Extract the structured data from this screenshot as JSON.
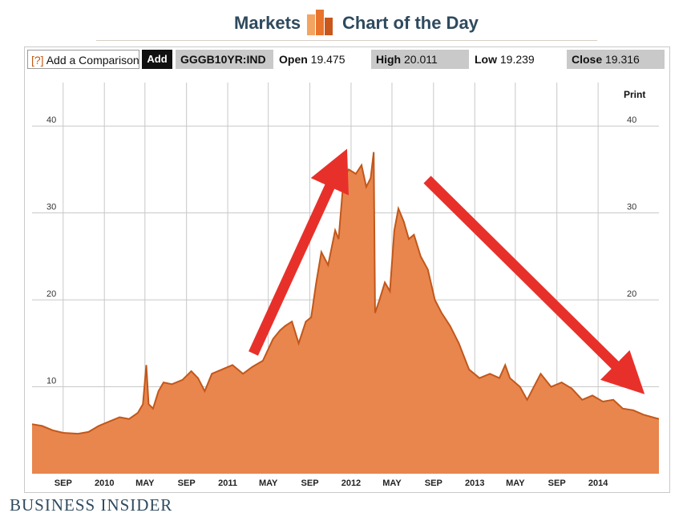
{
  "header": {
    "left_label": "Markets",
    "right_label": "Chart of the Day"
  },
  "toolbar": {
    "compare_prefix": "[?]",
    "compare_label": "Add a Comparison",
    "add_label": "Add",
    "ticker": "GGGB10YR:IND",
    "open_label": "Open",
    "open_value": "19.475",
    "high_label": "High",
    "high_value": "20.011",
    "low_label": "Low",
    "low_value": "19.239",
    "close_label": "Close",
    "close_value": "19.316",
    "print_label": "Print"
  },
  "brand": "BUSINESS INSIDER",
  "colors": {
    "area_fill": "#e8864e",
    "line": "#c2571a",
    "arrow": "#e8302a",
    "grid": "#c8c8c8"
  },
  "chart_data": {
    "type": "area",
    "title": "",
    "xlabel": "",
    "ylabel": "",
    "ylim": [
      0,
      45
    ],
    "y_ticks": [
      10,
      20,
      30,
      40
    ],
    "grid": true,
    "x_range": [
      "2009-06-01",
      "2014-06-30"
    ],
    "x_ticks": [
      {
        "label": "SEP",
        "date": "2009-09-01"
      },
      {
        "label": "2010",
        "date": "2010-01-01"
      },
      {
        "label": "MAY",
        "date": "2010-05-01"
      },
      {
        "label": "SEP",
        "date": "2010-09-01"
      },
      {
        "label": "2011",
        "date": "2011-01-01"
      },
      {
        "label": "MAY",
        "date": "2011-05-01"
      },
      {
        "label": "SEP",
        "date": "2011-09-01"
      },
      {
        "label": "2012",
        "date": "2012-01-01"
      },
      {
        "label": "MAY",
        "date": "2012-05-01"
      },
      {
        "label": "SEP",
        "date": "2012-09-01"
      },
      {
        "label": "2013",
        "date": "2013-01-01"
      },
      {
        "label": "MAY",
        "date": "2013-05-01"
      },
      {
        "label": "SEP",
        "date": "2013-09-01"
      },
      {
        "label": "2014",
        "date": "2014-01-01"
      }
    ],
    "series": [
      {
        "values": [
          [
            "2009-06-01",
            5.7
          ],
          [
            "2009-07-01",
            5.5
          ],
          [
            "2009-08-01",
            5.0
          ],
          [
            "2009-09-01",
            4.7
          ],
          [
            "2009-10-15",
            4.6
          ],
          [
            "2009-11-15",
            4.8
          ],
          [
            "2009-12-15",
            5.5
          ],
          [
            "2010-01-15",
            6.0
          ],
          [
            "2010-02-15",
            6.5
          ],
          [
            "2010-03-15",
            6.3
          ],
          [
            "2010-04-10",
            7.0
          ],
          [
            "2010-04-25",
            8.0
          ],
          [
            "2010-05-05",
            12.5
          ],
          [
            "2010-05-12",
            8.0
          ],
          [
            "2010-05-25",
            7.5
          ],
          [
            "2010-06-10",
            9.5
          ],
          [
            "2010-06-25",
            10.5
          ],
          [
            "2010-07-20",
            10.3
          ],
          [
            "2010-08-20",
            10.8
          ],
          [
            "2010-09-15",
            11.8
          ],
          [
            "2010-10-05",
            11.0
          ],
          [
            "2010-10-25",
            9.5
          ],
          [
            "2010-11-15",
            11.5
          ],
          [
            "2010-12-15",
            12.0
          ],
          [
            "2011-01-15",
            12.5
          ],
          [
            "2011-02-15",
            11.5
          ],
          [
            "2011-03-15",
            12.3
          ],
          [
            "2011-04-15",
            13.0
          ],
          [
            "2011-05-15",
            15.5
          ],
          [
            "2011-06-05",
            16.5
          ],
          [
            "2011-06-20",
            17.0
          ],
          [
            "2011-07-10",
            17.5
          ],
          [
            "2011-07-30",
            15.0
          ],
          [
            "2011-08-20",
            17.5
          ],
          [
            "2011-09-05",
            18.0
          ],
          [
            "2011-09-20",
            22.0
          ],
          [
            "2011-10-05",
            25.5
          ],
          [
            "2011-10-25",
            24.0
          ],
          [
            "2011-11-15",
            28.0
          ],
          [
            "2011-11-25",
            27.0
          ],
          [
            "2011-12-10",
            34.0
          ],
          [
            "2011-12-25",
            35.0
          ],
          [
            "2012-01-15",
            34.5
          ],
          [
            "2012-02-01",
            35.5
          ],
          [
            "2012-02-15",
            33.0
          ],
          [
            "2012-02-28",
            34.0
          ],
          [
            "2012-03-08",
            37.0
          ],
          [
            "2012-03-12",
            18.5
          ],
          [
            "2012-03-25",
            20.0
          ],
          [
            "2012-04-10",
            22.0
          ],
          [
            "2012-04-25",
            21.0
          ],
          [
            "2012-05-08",
            28.0
          ],
          [
            "2012-05-20",
            30.5
          ],
          [
            "2012-06-05",
            29.0
          ],
          [
            "2012-06-20",
            27.0
          ],
          [
            "2012-07-05",
            27.5
          ],
          [
            "2012-07-25",
            25.0
          ],
          [
            "2012-08-15",
            23.5
          ],
          [
            "2012-09-05",
            20.0
          ],
          [
            "2012-09-25",
            18.5
          ],
          [
            "2012-10-20",
            17.0
          ],
          [
            "2012-11-15",
            15.0
          ],
          [
            "2012-12-15",
            12.0
          ],
          [
            "2013-01-15",
            11.0
          ],
          [
            "2013-02-15",
            11.5
          ],
          [
            "2013-03-15",
            11.0
          ],
          [
            "2013-04-01",
            12.5
          ],
          [
            "2013-04-15",
            11.0
          ],
          [
            "2013-05-15",
            10.0
          ],
          [
            "2013-06-05",
            8.5
          ],
          [
            "2013-06-25",
            10.0
          ],
          [
            "2013-07-15",
            11.5
          ],
          [
            "2013-08-15",
            10.0
          ],
          [
            "2013-09-15",
            10.5
          ],
          [
            "2013-10-15",
            9.8
          ],
          [
            "2013-11-15",
            8.5
          ],
          [
            "2013-12-15",
            9.0
          ],
          [
            "2014-01-15",
            8.3
          ],
          [
            "2014-02-15",
            8.5
          ],
          [
            "2014-03-15",
            7.5
          ],
          [
            "2014-04-15",
            7.3
          ],
          [
            "2014-05-15",
            6.8
          ],
          [
            "2014-06-30",
            6.3
          ]
        ]
      }
    ]
  }
}
